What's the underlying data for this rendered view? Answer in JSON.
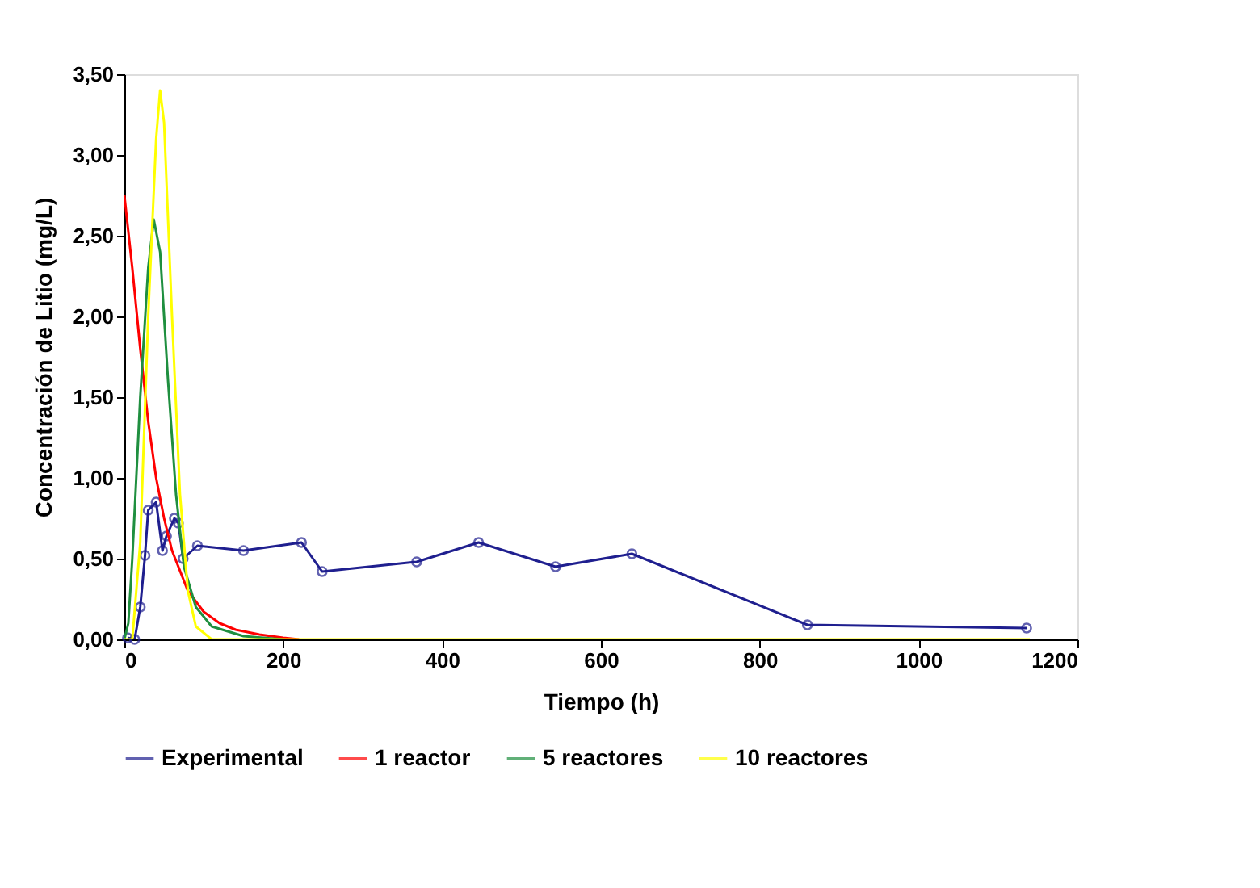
{
  "chart_data": {
    "type": "line",
    "xlabel": "Tiempo (h)",
    "ylabel": "Concentración de Litio (mg/L)",
    "xlim": [
      0,
      1200
    ],
    "xticks": [
      0,
      200,
      400,
      600,
      800,
      1000,
      1200
    ],
    "ylim": [
      0,
      3.5
    ],
    "yticks": [
      {
        "value": 0,
        "label": "0,00"
      },
      {
        "value": 0.5,
        "label": "0,50"
      },
      {
        "value": 1,
        "label": "1,00"
      },
      {
        "value": 1.5,
        "label": "1,50"
      },
      {
        "value": 2,
        "label": "2,00"
      },
      {
        "value": 2.5,
        "label": "2,50"
      },
      {
        "value": 3,
        "label": "3,00"
      },
      {
        "value": 3.5,
        "label": "3,50"
      }
    ],
    "grid": false,
    "legend": "bottom",
    "line_style": "solid",
    "series": [
      {
        "name": "Experimental",
        "color": "#1f1f8f",
        "marker": "circle",
        "x": [
          4,
          13,
          20,
          26,
          30,
          40,
          48,
          53,
          63,
          68,
          74,
          92,
          150,
          223,
          249,
          368,
          446,
          543,
          639,
          860,
          1136
        ],
        "values": [
          0.01,
          0,
          0.2,
          0.52,
          0.8,
          0.85,
          0.55,
          0.64,
          0.75,
          0.72,
          0.5,
          0.58,
          0.55,
          0.6,
          0.42,
          0.48,
          0.6,
          0.45,
          0.53,
          0.09,
          0.07
        ]
      },
      {
        "name": "1 reactor",
        "color": "#ff0000",
        "marker": "none",
        "x": [
          0,
          10,
          20,
          30,
          40,
          50,
          60,
          80,
          100,
          120,
          140,
          170,
          200,
          220
        ],
        "values": [
          2.75,
          2.3,
          1.8,
          1.35,
          1.0,
          0.75,
          0.55,
          0.3,
          0.17,
          0.1,
          0.06,
          0.03,
          0.01,
          0
        ]
      },
      {
        "name": "5 reactores",
        "color": "#1f8f3f",
        "marker": "none",
        "x": [
          0,
          5,
          10,
          20,
          30,
          37,
          45,
          55,
          65,
          75,
          90,
          110,
          150,
          200
        ],
        "values": [
          0,
          0.1,
          0.5,
          1.5,
          2.3,
          2.6,
          2.4,
          1.6,
          0.9,
          0.45,
          0.2,
          0.08,
          0.02,
          0
        ]
      },
      {
        "name": "10 reactores",
        "color": "#ffff00",
        "marker": "none",
        "x": [
          0,
          10,
          20,
          30,
          40,
          45,
          50,
          60,
          70,
          80,
          90,
          110,
          300,
          600,
          900,
          1140
        ],
        "values": [
          0,
          0,
          0.6,
          2.0,
          3.1,
          3.4,
          3.2,
          2.0,
          0.9,
          0.3,
          0.08,
          0,
          0,
          0,
          0,
          0
        ]
      }
    ]
  }
}
